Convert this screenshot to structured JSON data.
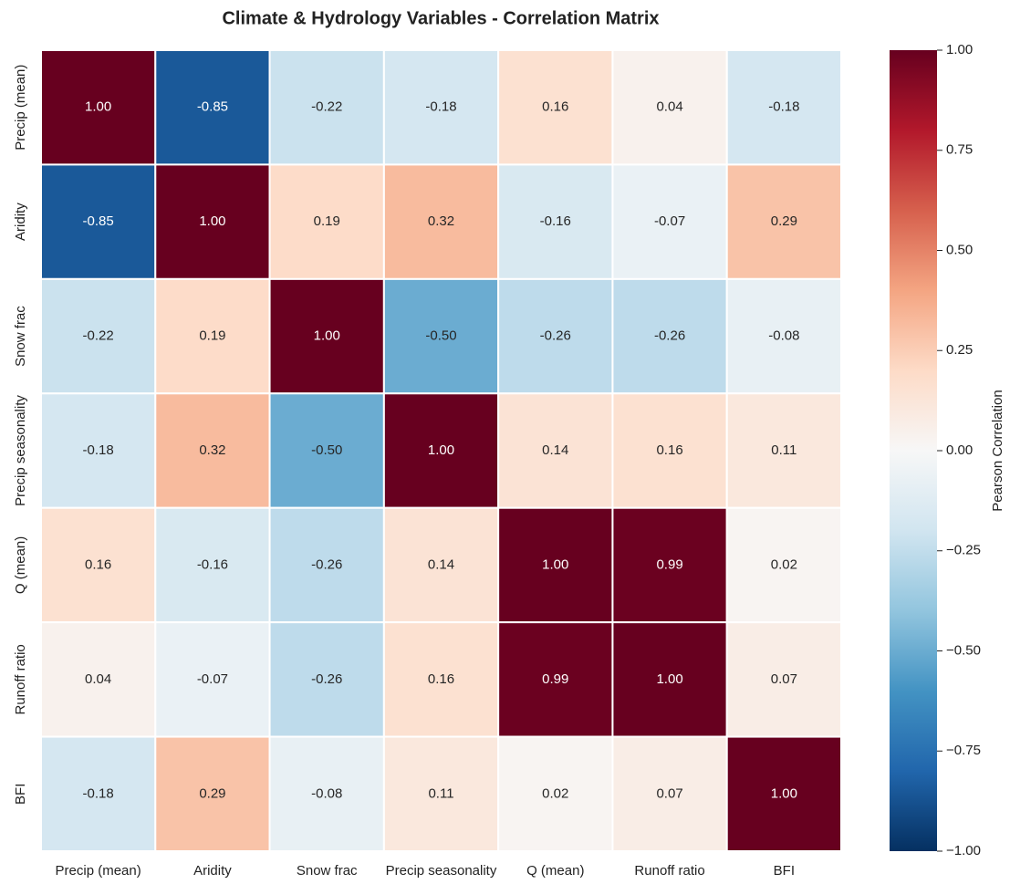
{
  "chart_data": {
    "type": "heatmap",
    "title": "Climate & Hydrology Variables - Correlation Matrix",
    "categories": [
      "Precip (mean)",
      "Aridity",
      "Snow frac",
      "Precip seasonality",
      "Q (mean)",
      "Runoff ratio",
      "BFI"
    ],
    "values": [
      [
        1,
        -0.85,
        -0.22,
        -0.18,
        0.16,
        0.04,
        -0.18
      ],
      [
        -0.85,
        1,
        0.19,
        0.32,
        -0.16,
        -0.07,
        0.29
      ],
      [
        -0.22,
        0.19,
        1,
        -0.5,
        -0.26,
        -0.26,
        -0.08
      ],
      [
        -0.18,
        0.32,
        -0.5,
        1,
        0.14,
        0.16,
        0.11
      ],
      [
        0.16,
        -0.16,
        -0.26,
        0.14,
        1,
        0.99,
        0.02
      ],
      [
        0.04,
        -0.07,
        -0.26,
        0.16,
        0.99,
        1,
        0.07
      ],
      [
        -0.18,
        0.29,
        -0.08,
        0.11,
        0.02,
        0.07,
        1
      ]
    ],
    "value_labels": [
      [
        "1.00",
        "-0.85",
        "-0.22",
        "-0.18",
        "0.16",
        "0.04",
        "-0.18"
      ],
      [
        "-0.85",
        "1.00",
        "0.19",
        "0.32",
        "-0.16",
        "-0.07",
        "0.29"
      ],
      [
        "-0.22",
        "0.19",
        "1.00",
        "-0.50",
        "-0.26",
        "-0.26",
        "-0.08"
      ],
      [
        "-0.18",
        "0.32",
        "-0.50",
        "1.00",
        "0.14",
        "0.16",
        "0.11"
      ],
      [
        "0.16",
        "-0.16",
        "-0.26",
        "0.14",
        "1.00",
        "0.99",
        "0.02"
      ],
      [
        "0.04",
        "-0.07",
        "-0.26",
        "0.16",
        "0.99",
        "1.00",
        "0.07"
      ],
      [
        "-0.18",
        "0.29",
        "-0.08",
        "0.11",
        "0.02",
        "0.07",
        "1.00"
      ]
    ],
    "colormap": "RdBu_r",
    "zlim": [
      -1,
      1
    ],
    "zticks": [
      {
        "value": -1,
        "label": "−1.00"
      },
      {
        "value": -0.75,
        "label": "−0.75"
      },
      {
        "value": -0.5,
        "label": "−0.50"
      },
      {
        "value": -0.25,
        "label": "−0.25"
      },
      {
        "value": 0,
        "label": "0.00"
      },
      {
        "value": 0.25,
        "label": "0.25"
      },
      {
        "value": 0.5,
        "label": "0.50"
      },
      {
        "value": 0.75,
        "label": "0.75"
      },
      {
        "value": 1,
        "label": "1.00"
      }
    ],
    "colorbar_label": "Pearson Correlation"
  }
}
